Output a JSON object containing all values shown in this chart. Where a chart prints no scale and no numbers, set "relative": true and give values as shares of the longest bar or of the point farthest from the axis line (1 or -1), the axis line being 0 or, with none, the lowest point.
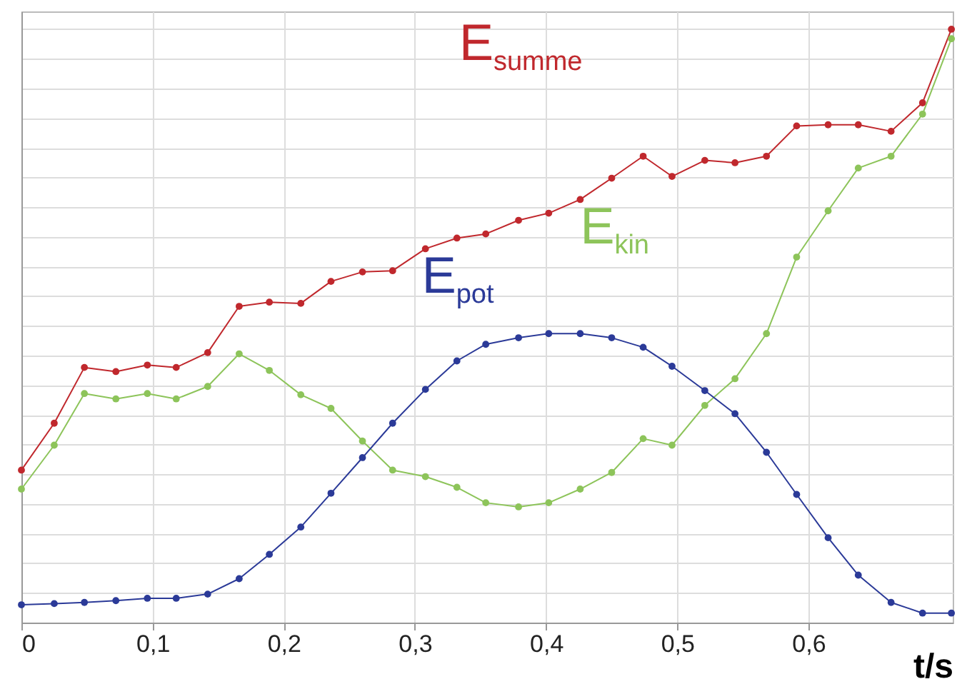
{
  "chart_data": {
    "type": "line",
    "relative": true,
    "xlabel": "t/s",
    "marker": "circle",
    "line_style": "solid",
    "grid": true,
    "legend": false,
    "x": [
      0,
      0.025,
      0.048,
      0.072,
      0.096,
      0.118,
      0.142,
      0.166,
      0.189,
      0.213,
      0.236,
      0.26,
      0.283,
      0.308,
      0.332,
      0.354,
      0.379,
      0.402,
      0.426,
      0.45,
      0.474,
      0.496,
      0.521,
      0.544,
      0.568,
      0.591,
      0.615,
      0.638,
      0.663,
      0.687,
      0.709
    ],
    "xlim": [
      0,
      0.71
    ],
    "xticks": [
      0,
      {
        "value": 0.1,
        "label": "0,1"
      },
      {
        "value": 0.2,
        "label": "0,2"
      },
      {
        "value": 0.3,
        "label": "0,3"
      },
      {
        "value": 0.4,
        "label": "0,4"
      },
      {
        "value": 0.5,
        "label": "0,5"
      },
      {
        "value": 0.6,
        "label": "0,6"
      }
    ],
    "series": [
      {
        "name": "E$_{summe}$",
        "color": "#c0282d",
        "values": [
          0.257,
          0.336,
          0.43,
          0.423,
          0.434,
          0.43,
          0.455,
          0.533,
          0.54,
          0.538,
          0.575,
          0.591,
          0.593,
          0.63,
          0.648,
          0.655,
          0.678,
          0.69,
          0.713,
          0.749,
          0.786,
          0.752,
          0.779,
          0.775,
          0.786,
          0.837,
          0.839,
          0.839,
          0.828,
          0.876,
          1
        ]
      },
      {
        "name": "E$_{kin}$",
        "color": "#8dc45a",
        "values": [
          0.225,
          0.299,
          0.386,
          0.377,
          0.386,
          0.377,
          0.398,
          0.453,
          0.425,
          0.384,
          0.361,
          0.306,
          0.257,
          0.246,
          0.228,
          0.202,
          0.195,
          0.202,
          0.225,
          0.253,
          0.31,
          0.299,
          0.366,
          0.411,
          0.487,
          0.616,
          0.694,
          0.766,
          0.786,
          0.857,
          0.984
        ]
      },
      {
        "name": "E$_{pot}$",
        "color": "#2b3a98",
        "values": [
          0.03,
          0.032,
          0.034,
          0.037,
          0.041,
          0.041,
          0.048,
          0.074,
          0.115,
          0.161,
          0.218,
          0.278,
          0.336,
          0.393,
          0.441,
          0.469,
          0.48,
          0.487,
          0.487,
          0.48,
          0.464,
          0.432,
          0.391,
          0.352,
          0.287,
          0.216,
          0.143,
          0.08,
          0.034,
          0.016,
          0.016
        ]
      }
    ]
  }
}
